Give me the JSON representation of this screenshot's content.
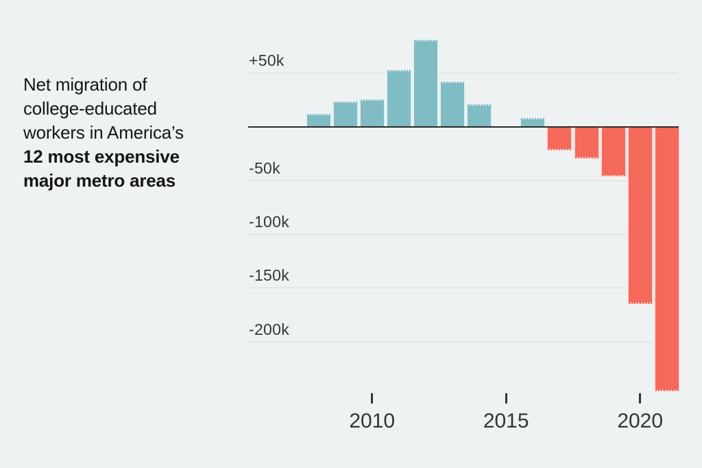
{
  "title": {
    "lines": [
      {
        "text": "Net migration of",
        "bold": false
      },
      {
        "text": "college-educated",
        "bold": false
      },
      {
        "text": "workers in America’s",
        "bold": false
      },
      {
        "text": "12 most expensive",
        "bold": true
      },
      {
        "text": "major metro areas",
        "bold": true
      }
    ]
  },
  "chart_data": {
    "type": "bar",
    "series_name": "Net migration of college-educated workers (thousands)",
    "x": [
      2008,
      2009,
      2010,
      2011,
      2012,
      2013,
      2014,
      2015,
      2016,
      2017,
      2018,
      2019,
      2020,
      2021
    ],
    "values": [
      12,
      23,
      25,
      53,
      81,
      42,
      21,
      0,
      8,
      -22,
      -30,
      -46,
      -165,
      -246
    ],
    "unit": "thousands of workers",
    "positive_color": "#80bcc3",
    "negative_color": "#f4695a",
    "background_color": "#eef2f3",
    "y_gridlines": [
      {
        "value": 50,
        "label": "+50k"
      },
      {
        "value": -50,
        "label": "-50k"
      },
      {
        "value": -100,
        "label": "-100k"
      },
      {
        "value": -150,
        "label": "-150k"
      },
      {
        "value": -200,
        "label": "-200k"
      }
    ],
    "x_ticks": [
      {
        "value": 2010,
        "label": "2010"
      },
      {
        "value": 2015,
        "label": "2015"
      },
      {
        "value": 2020,
        "label": "2020"
      }
    ],
    "ylim": [
      -250,
      90
    ],
    "grid": true,
    "legend": "none"
  }
}
